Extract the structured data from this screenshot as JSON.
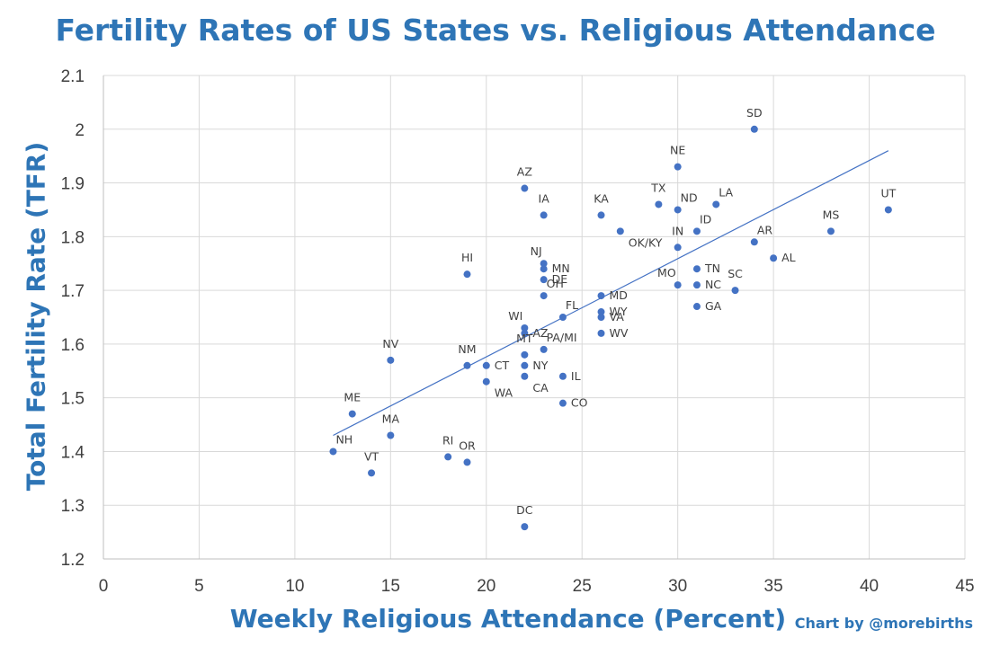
{
  "chart_data": {
    "type": "scatter",
    "title": "Fertility Rates of US States vs. Religious Attendance",
    "xlabel": "Weekly Religious Attendance (Percent)",
    "ylabel": "Total Fertility Rate (TFR)",
    "credit": "Chart by @morebirths",
    "xlim": [
      0,
      45
    ],
    "ylim": [
      1.2,
      2.1
    ],
    "x_ticks": [
      0,
      5,
      10,
      15,
      20,
      25,
      30,
      35,
      40,
      45
    ],
    "y_ticks": [
      "1.2",
      "1.3",
      "1.4",
      "1.5",
      "1.6",
      "1.7",
      "1.8",
      "1.9",
      "2",
      "2.1"
    ],
    "grid": true,
    "point_color": "#4472c4",
    "trendline": {
      "type": "linear",
      "color": "#4472c4",
      "x": [
        12,
        41
      ],
      "y": [
        1.43,
        1.96
      ]
    },
    "points": [
      {
        "label": "SD",
        "x": 34,
        "y": 2.0,
        "pos": "above"
      },
      {
        "label": "NE",
        "x": 30,
        "y": 1.93,
        "pos": "above"
      },
      {
        "label": "AZ",
        "x": 22,
        "y": 1.89,
        "pos": "above"
      },
      {
        "label": "UT",
        "x": 41,
        "y": 1.85,
        "pos": "above"
      },
      {
        "label": "TX",
        "x": 29,
        "y": 1.86,
        "pos": "above"
      },
      {
        "label": "ND",
        "x": 30,
        "y": 1.85,
        "pos": "aboveright"
      },
      {
        "label": "LA",
        "x": 32,
        "y": 1.86,
        "pos": "aboveright"
      },
      {
        "label": "IA",
        "x": 23,
        "y": 1.84,
        "pos": "above"
      },
      {
        "label": "KA",
        "x": 26,
        "y": 1.84,
        "pos": "above"
      },
      {
        "label": "OK/KY",
        "x": 27,
        "y": 1.81,
        "pos": "belowright"
      },
      {
        "label": "ID",
        "x": 31,
        "y": 1.81,
        "pos": "aboveright"
      },
      {
        "label": "MS",
        "x": 38,
        "y": 1.81,
        "pos": "above"
      },
      {
        "label": "IN",
        "x": 30,
        "y": 1.78,
        "pos": "above"
      },
      {
        "label": "AR",
        "x": 34,
        "y": 1.79,
        "pos": "aboveright"
      },
      {
        "label": "AL",
        "x": 35,
        "y": 1.76,
        "pos": "right"
      },
      {
        "label": "HI",
        "x": 19,
        "y": 1.73,
        "pos": "above"
      },
      {
        "label": "NJ",
        "x": 23,
        "y": 1.75,
        "pos": "aboveleft"
      },
      {
        "label": "MN",
        "x": 23,
        "y": 1.74,
        "pos": "right"
      },
      {
        "label": "DE",
        "x": 23,
        "y": 1.72,
        "pos": "right"
      },
      {
        "label": "OH",
        "x": 23,
        "y": 1.69,
        "pos": "aboveright"
      },
      {
        "label": "TN",
        "x": 31,
        "y": 1.74,
        "pos": "right"
      },
      {
        "label": "MO",
        "x": 30,
        "y": 1.71,
        "pos": "aboveleft"
      },
      {
        "label": "NC",
        "x": 31,
        "y": 1.71,
        "pos": "right"
      },
      {
        "label": "SC",
        "x": 33,
        "y": 1.7,
        "pos": "above"
      },
      {
        "label": "MD",
        "x": 26,
        "y": 1.69,
        "pos": "right"
      },
      {
        "label": "GA",
        "x": 31,
        "y": 1.67,
        "pos": "right"
      },
      {
        "label": "FL",
        "x": 24,
        "y": 1.65,
        "pos": "aboveright"
      },
      {
        "label": "WY",
        "x": 26,
        "y": 1.66,
        "pos": "right"
      },
      {
        "label": "VA",
        "x": 26,
        "y": 1.65,
        "pos": "right"
      },
      {
        "label": "WI",
        "x": 22,
        "y": 1.63,
        "pos": "aboveleft"
      },
      {
        "label": "AZ",
        "x": 22,
        "y": 1.62,
        "pos": "right"
      },
      {
        "label": "WV",
        "x": 26,
        "y": 1.62,
        "pos": "right"
      },
      {
        "label": "PA/MI",
        "x": 23,
        "y": 1.59,
        "pos": "aboveright"
      },
      {
        "label": "NV",
        "x": 15,
        "y": 1.57,
        "pos": "above"
      },
      {
        "label": "MT",
        "x": 22,
        "y": 1.58,
        "pos": "above"
      },
      {
        "label": "NM",
        "x": 19,
        "y": 1.56,
        "pos": "above"
      },
      {
        "label": "CT",
        "x": 20,
        "y": 1.56,
        "pos": "right"
      },
      {
        "label": "NY",
        "x": 22,
        "y": 1.56,
        "pos": "right"
      },
      {
        "label": "IL",
        "x": 24,
        "y": 1.54,
        "pos": "right"
      },
      {
        "label": "WA",
        "x": 20,
        "y": 1.53,
        "pos": "belowright"
      },
      {
        "label": "CA",
        "x": 22,
        "y": 1.54,
        "pos": "belowright"
      },
      {
        "label": "CO",
        "x": 24,
        "y": 1.49,
        "pos": "right"
      },
      {
        "label": "ME",
        "x": 13,
        "y": 1.47,
        "pos": "above"
      },
      {
        "label": "MA",
        "x": 15,
        "y": 1.43,
        "pos": "above"
      },
      {
        "label": "NH",
        "x": 12,
        "y": 1.4,
        "pos": "aboveright"
      },
      {
        "label": "RI",
        "x": 18,
        "y": 1.39,
        "pos": "above"
      },
      {
        "label": "OR",
        "x": 19,
        "y": 1.38,
        "pos": "above"
      },
      {
        "label": "VT",
        "x": 14,
        "y": 1.36,
        "pos": "above"
      },
      {
        "label": "DC",
        "x": 22,
        "y": 1.26,
        "pos": "above"
      }
    ]
  }
}
